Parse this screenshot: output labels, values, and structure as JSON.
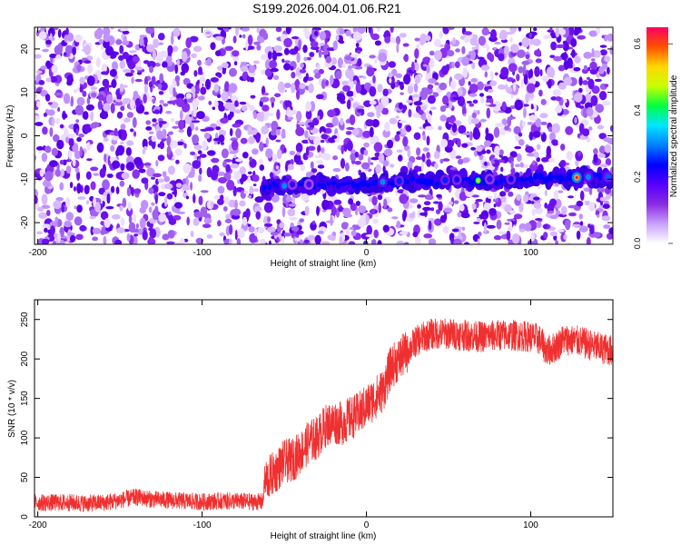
{
  "page": {
    "title": "S199.2026.004.01.06.R21"
  },
  "chart_data": [
    {
      "type": "heatmap",
      "xlabel": "Height of straight line (km)",
      "ylabel": "Frequency (Hz)",
      "xlim": [
        -202,
        150
      ],
      "ylim": [
        -25,
        25
      ],
      "xticks": [
        -200,
        -100,
        0,
        100
      ],
      "yticks": [
        -20,
        -10,
        0,
        10,
        20
      ],
      "colorbar": {
        "label": "Normalized spectral amplitude",
        "range": [
          0,
          0.65
        ],
        "ticks": [
          "0.0",
          "0.2",
          "0.4",
          "0.6"
        ],
        "stops": [
          "#ffffff",
          "#c9a0ff",
          "#8a2be2",
          "#5500ff",
          "#0000ff",
          "#0080ff",
          "#00e5ff",
          "#00ff40",
          "#c8ff00",
          "#ffd700",
          "#ff5000",
          "#ff0060"
        ]
      },
      "signal_track": {
        "description_values_in_data_units": true,
        "start_x": -62,
        "end_x": 150,
        "freq_at_start": -11.5,
        "freq_at_end": -9.5,
        "peaks": [
          {
            "x": -50,
            "y": -11.5,
            "amp": 0.3
          },
          {
            "x": -45,
            "y": -11.2,
            "amp": 0.2
          },
          {
            "x": -35,
            "y": -11.2,
            "amp": 0.18
          },
          {
            "x": 10,
            "y": -10.6,
            "amp": 0.3
          },
          {
            "x": 20,
            "y": -10.4,
            "amp": 0.25
          },
          {
            "x": 48,
            "y": -10.2,
            "amp": 0.25
          },
          {
            "x": 55,
            "y": -10.1,
            "amp": 0.22
          },
          {
            "x": 68,
            "y": -10.3,
            "amp": 0.42
          },
          {
            "x": 75,
            "y": -10.0,
            "amp": 0.2
          },
          {
            "x": 88,
            "y": -10.0,
            "amp": 0.22
          },
          {
            "x": 128,
            "y": -9.6,
            "amp": 0.55
          },
          {
            "x": 135,
            "y": -9.5,
            "amp": 0.3
          },
          {
            "x": 147,
            "y": -9.5,
            "amp": 0.28
          }
        ]
      }
    },
    {
      "type": "line",
      "xlabel": "Height of straight line (km)",
      "ylabel": "SNR (10 * v/v)",
      "xlim": [
        -202,
        150
      ],
      "ylim": [
        0,
        275
      ],
      "xticks": [
        -200,
        -100,
        0,
        100
      ],
      "yticks": [
        0,
        50,
        100,
        150,
        200,
        250
      ],
      "color": "#f03030",
      "series": [
        {
          "name": "SNR",
          "x": [
            -202,
            -190,
            -180,
            -170,
            -160,
            -150,
            -140,
            -130,
            -120,
            -110,
            -100,
            -90,
            -80,
            -70,
            -63,
            -62,
            -55,
            -50,
            -45,
            -40,
            -35,
            -30,
            -25,
            -20,
            -15,
            -10,
            -5,
            0,
            5,
            10,
            15,
            20,
            25,
            30,
            35,
            40,
            50,
            60,
            70,
            80,
            90,
            100,
            105,
            110,
            115,
            120,
            130,
            140,
            150
          ],
          "values": [
            18,
            18,
            18,
            17,
            18,
            21,
            25,
            22,
            21,
            20,
            19,
            20,
            20,
            19,
            19,
            45,
            58,
            70,
            72,
            82,
            95,
            100,
            115,
            120,
            118,
            125,
            130,
            140,
            150,
            160,
            190,
            200,
            210,
            222,
            228,
            232,
            232,
            230,
            228,
            230,
            230,
            228,
            225,
            210,
            215,
            225,
            222,
            215,
            210
          ]
        }
      ]
    }
  ]
}
